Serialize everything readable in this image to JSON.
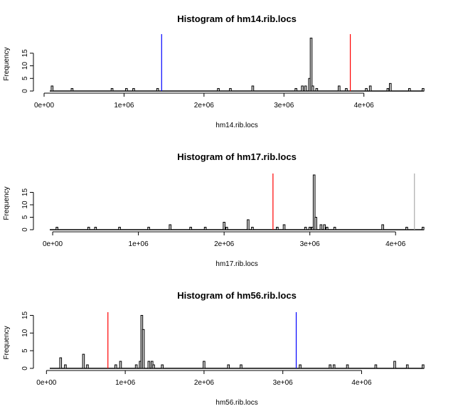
{
  "chart_data": [
    {
      "type": "bar",
      "title": "Histogram of hm14.rib.locs",
      "xlabel": "hm14.rib.locs",
      "ylabel": "Frequency",
      "xlim": [
        0,
        4750000
      ],
      "ylim": [
        0,
        22
      ],
      "x_ticks": [
        0,
        1000000,
        2000000,
        3000000,
        4000000
      ],
      "x_tick_labels": [
        "0e+00",
        "1e+06",
        "2e+06",
        "3e+06",
        "4e+06"
      ],
      "y_ticks": [
        0,
        5,
        10,
        15
      ],
      "y_tick_labels": [
        "0",
        "5",
        "10",
        "15"
      ],
      "bins": [
        {
          "x": 100000,
          "count": 2
        },
        {
          "x": 350000,
          "count": 1
        },
        {
          "x": 850000,
          "count": 1
        },
        {
          "x": 1030000,
          "count": 1
        },
        {
          "x": 1120000,
          "count": 1
        },
        {
          "x": 1420000,
          "count": 1
        },
        {
          "x": 2180000,
          "count": 1
        },
        {
          "x": 2330000,
          "count": 1
        },
        {
          "x": 2610000,
          "count": 2
        },
        {
          "x": 3150000,
          "count": 1
        },
        {
          "x": 3230000,
          "count": 2
        },
        {
          "x": 3270000,
          "count": 2
        },
        {
          "x": 3320000,
          "count": 5
        },
        {
          "x": 3340000,
          "count": 21
        },
        {
          "x": 3360000,
          "count": 2
        },
        {
          "x": 3410000,
          "count": 1
        },
        {
          "x": 3690000,
          "count": 2
        },
        {
          "x": 3780000,
          "count": 1
        },
        {
          "x": 4030000,
          "count": 1
        },
        {
          "x": 4080000,
          "count": 2
        },
        {
          "x": 4300000,
          "count": 1
        },
        {
          "x": 4330000,
          "count": 3
        },
        {
          "x": 4570000,
          "count": 1
        },
        {
          "x": 4740000,
          "count": 1
        }
      ],
      "vlines": [
        {
          "x": 1470000,
          "color": "#0000ff"
        },
        {
          "x": 3830000,
          "color": "#ff0000"
        }
      ]
    },
    {
      "type": "bar",
      "title": "Histogram of hm17.rib.locs",
      "xlabel": "hm17.rib.locs",
      "ylabel": "Frequency",
      "xlim": [
        -100000,
        4330000
      ],
      "ylim": [
        0,
        22
      ],
      "x_ticks": [
        0,
        1000000,
        2000000,
        3000000,
        4000000
      ],
      "x_tick_labels": [
        "0e+00",
        "1e+06",
        "2e+06",
        "3e+06",
        "4e+06"
      ],
      "y_ticks": [
        0,
        5,
        10,
        15
      ],
      "y_tick_labels": [
        "0",
        "5",
        "10",
        "15"
      ],
      "bins": [
        {
          "x": 50000,
          "count": 1
        },
        {
          "x": 420000,
          "count": 1
        },
        {
          "x": 500000,
          "count": 1
        },
        {
          "x": 780000,
          "count": 1
        },
        {
          "x": 1120000,
          "count": 1
        },
        {
          "x": 1370000,
          "count": 2
        },
        {
          "x": 1610000,
          "count": 1
        },
        {
          "x": 1780000,
          "count": 1
        },
        {
          "x": 2000000,
          "count": 3
        },
        {
          "x": 2030000,
          "count": 1
        },
        {
          "x": 2280000,
          "count": 4
        },
        {
          "x": 2330000,
          "count": 1
        },
        {
          "x": 2620000,
          "count": 1
        },
        {
          "x": 2700000,
          "count": 2
        },
        {
          "x": 2950000,
          "count": 1
        },
        {
          "x": 3000000,
          "count": 1
        },
        {
          "x": 3030000,
          "count": 1
        },
        {
          "x": 3050000,
          "count": 22
        },
        {
          "x": 3070000,
          "count": 5
        },
        {
          "x": 3130000,
          "count": 2
        },
        {
          "x": 3170000,
          "count": 2
        },
        {
          "x": 3200000,
          "count": 1
        },
        {
          "x": 3290000,
          "count": 1
        },
        {
          "x": 3850000,
          "count": 2
        },
        {
          "x": 4130000,
          "count": 1
        },
        {
          "x": 4320000,
          "count": 1
        }
      ],
      "vlines": [
        {
          "x": 2570000,
          "color": "#ff0000"
        },
        {
          "x": 4220000,
          "color": "#aaaaaa"
        }
      ]
    },
    {
      "type": "bar",
      "title": "Histogram of hm56.rib.locs",
      "xlabel": "hm56.rib.locs",
      "ylabel": "Frequency",
      "xlim": [
        -30000,
        4790000
      ],
      "ylim": [
        0,
        15.5
      ],
      "x_ticks": [
        0,
        1000000,
        2000000,
        3000000,
        4000000
      ],
      "x_tick_labels": [
        "0e+00",
        "1e+06",
        "2e+06",
        "3e+06",
        "4e+06"
      ],
      "y_ticks": [
        0,
        5,
        10,
        15
      ],
      "y_tick_labels": [
        "0",
        "5",
        "10",
        "15"
      ],
      "bins": [
        {
          "x": 180000,
          "count": 3
        },
        {
          "x": 240000,
          "count": 1
        },
        {
          "x": 470000,
          "count": 4
        },
        {
          "x": 520000,
          "count": 1
        },
        {
          "x": 880000,
          "count": 1
        },
        {
          "x": 940000,
          "count": 2
        },
        {
          "x": 1140000,
          "count": 1
        },
        {
          "x": 1190000,
          "count": 2
        },
        {
          "x": 1210000,
          "count": 15
        },
        {
          "x": 1230000,
          "count": 11
        },
        {
          "x": 1300000,
          "count": 2
        },
        {
          "x": 1340000,
          "count": 2
        },
        {
          "x": 1360000,
          "count": 1
        },
        {
          "x": 1470000,
          "count": 1
        },
        {
          "x": 2000000,
          "count": 2
        },
        {
          "x": 2310000,
          "count": 1
        },
        {
          "x": 2470000,
          "count": 1
        },
        {
          "x": 3220000,
          "count": 1
        },
        {
          "x": 3600000,
          "count": 1
        },
        {
          "x": 3650000,
          "count": 1
        },
        {
          "x": 3820000,
          "count": 1
        },
        {
          "x": 4180000,
          "count": 1
        },
        {
          "x": 4420000,
          "count": 2
        },
        {
          "x": 4580000,
          "count": 1
        },
        {
          "x": 4780000,
          "count": 1
        }
      ],
      "vlines": [
        {
          "x": 780000,
          "color": "#ff0000"
        },
        {
          "x": 3170000,
          "color": "#0000ff"
        }
      ]
    }
  ]
}
